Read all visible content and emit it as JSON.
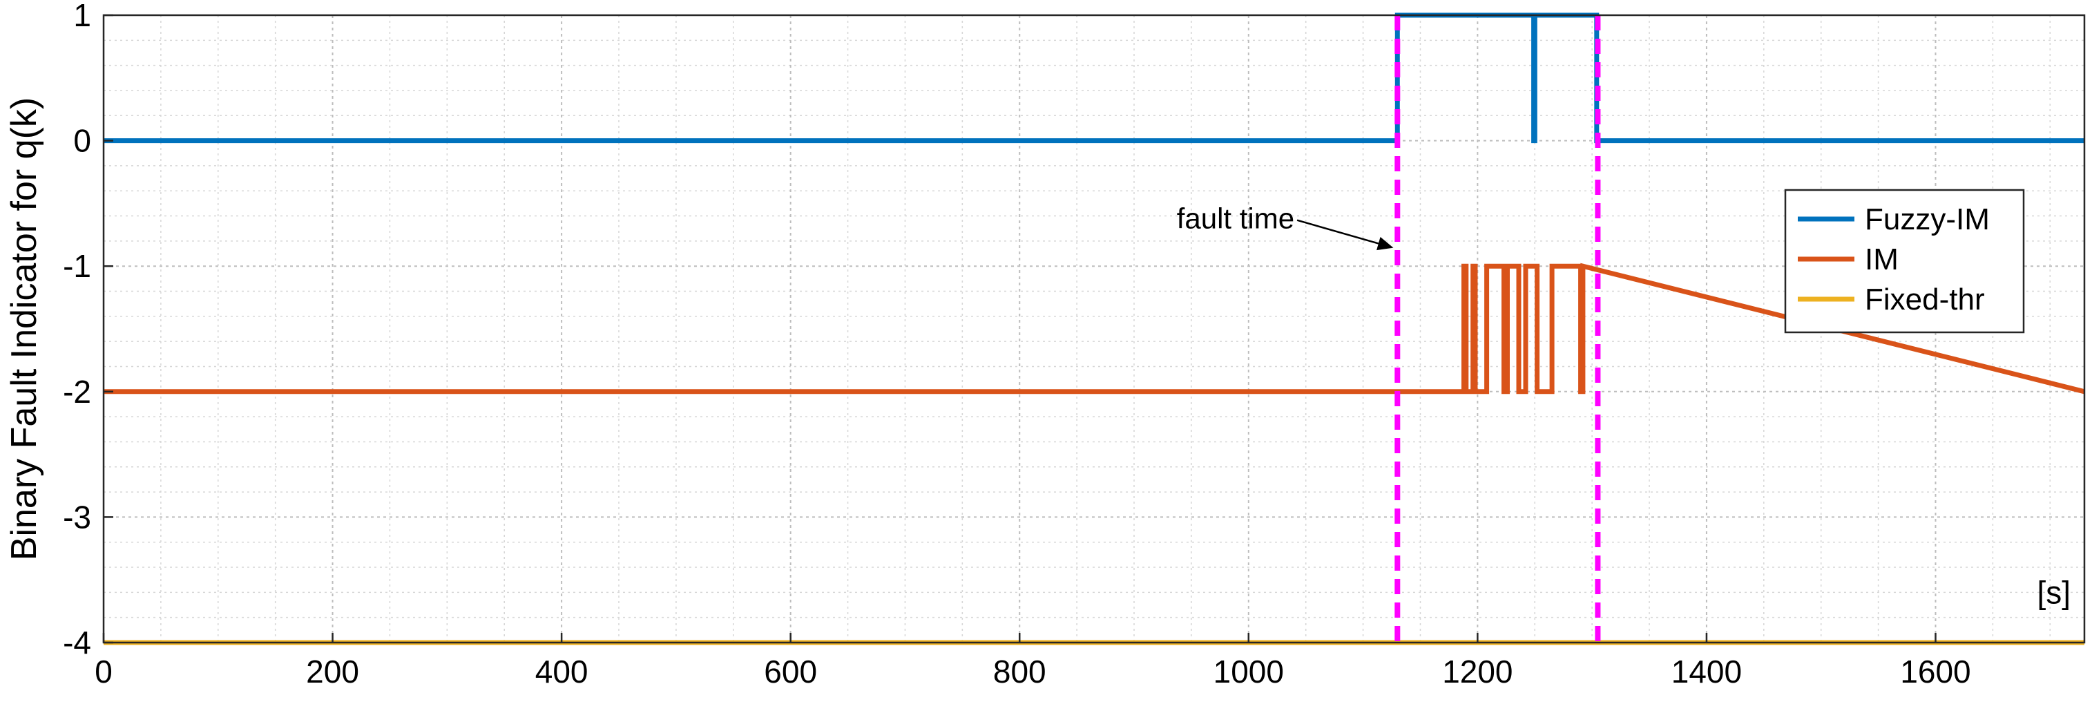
{
  "chart_data": {
    "type": "line",
    "title": "",
    "xlabel": "",
    "ylabel": "Binary Fault Indicator for  q(k)",
    "x_unit": "[s]",
    "xlim": [
      0,
      1730
    ],
    "ylim": [
      -4,
      1
    ],
    "x_ticks": [
      0,
      200,
      400,
      600,
      800,
      1000,
      1200,
      1400,
      1600
    ],
    "y_ticks": [
      1,
      0,
      -1,
      -2,
      -3,
      -4
    ],
    "x_tick_labels": [
      "0",
      "200",
      "400",
      "600",
      "800",
      "1000",
      "1200",
      "1400",
      "1600"
    ],
    "y_tick_labels": [
      "1",
      "0",
      "-1",
      "-2",
      "-3",
      "-4"
    ],
    "grid": true,
    "minor_grid": true,
    "legend_position": "right",
    "series": [
      {
        "name": "Fuzzy-IM",
        "color": "#0072BD",
        "x": [
          0,
          1130,
          1130,
          1249,
          1249,
          1250,
          1250,
          1304,
          1304,
          1730
        ],
        "y": [
          0,
          0,
          1,
          1,
          0,
          0,
          1,
          1,
          0,
          0
        ]
      },
      {
        "name": "IM",
        "color": "#D95319",
        "x": [
          0,
          1188,
          1188,
          1190,
          1190,
          1196,
          1196,
          1198,
          1198,
          1208,
          1208,
          1223,
          1223,
          1226,
          1226,
          1236,
          1236,
          1242,
          1242,
          1252,
          1252,
          1265,
          1265,
          1290,
          1290,
          1292,
          1292,
          1730
        ],
        "y": [
          -2,
          -2,
          -1,
          -1,
          -2,
          -2,
          -1,
          -1,
          -2,
          -2,
          -1,
          -1,
          -2,
          -2,
          -1,
          -1,
          -2,
          -2,
          -1,
          -1,
          -2,
          -2,
          -1,
          -1,
          -2,
          -2,
          -1,
          -2
        ]
      },
      {
        "name": "Fixed-thr",
        "color": "#EDB120",
        "x": [
          0,
          1730
        ],
        "y": [
          -4,
          -4
        ]
      }
    ],
    "fault_lines": {
      "color": "#FF00FF",
      "x": [
        1130,
        1305
      ]
    },
    "annotations": [
      {
        "text": "fault time",
        "x": 1040,
        "y": -0.7,
        "arrow_to": [
          1125,
          -0.85
        ]
      }
    ]
  }
}
